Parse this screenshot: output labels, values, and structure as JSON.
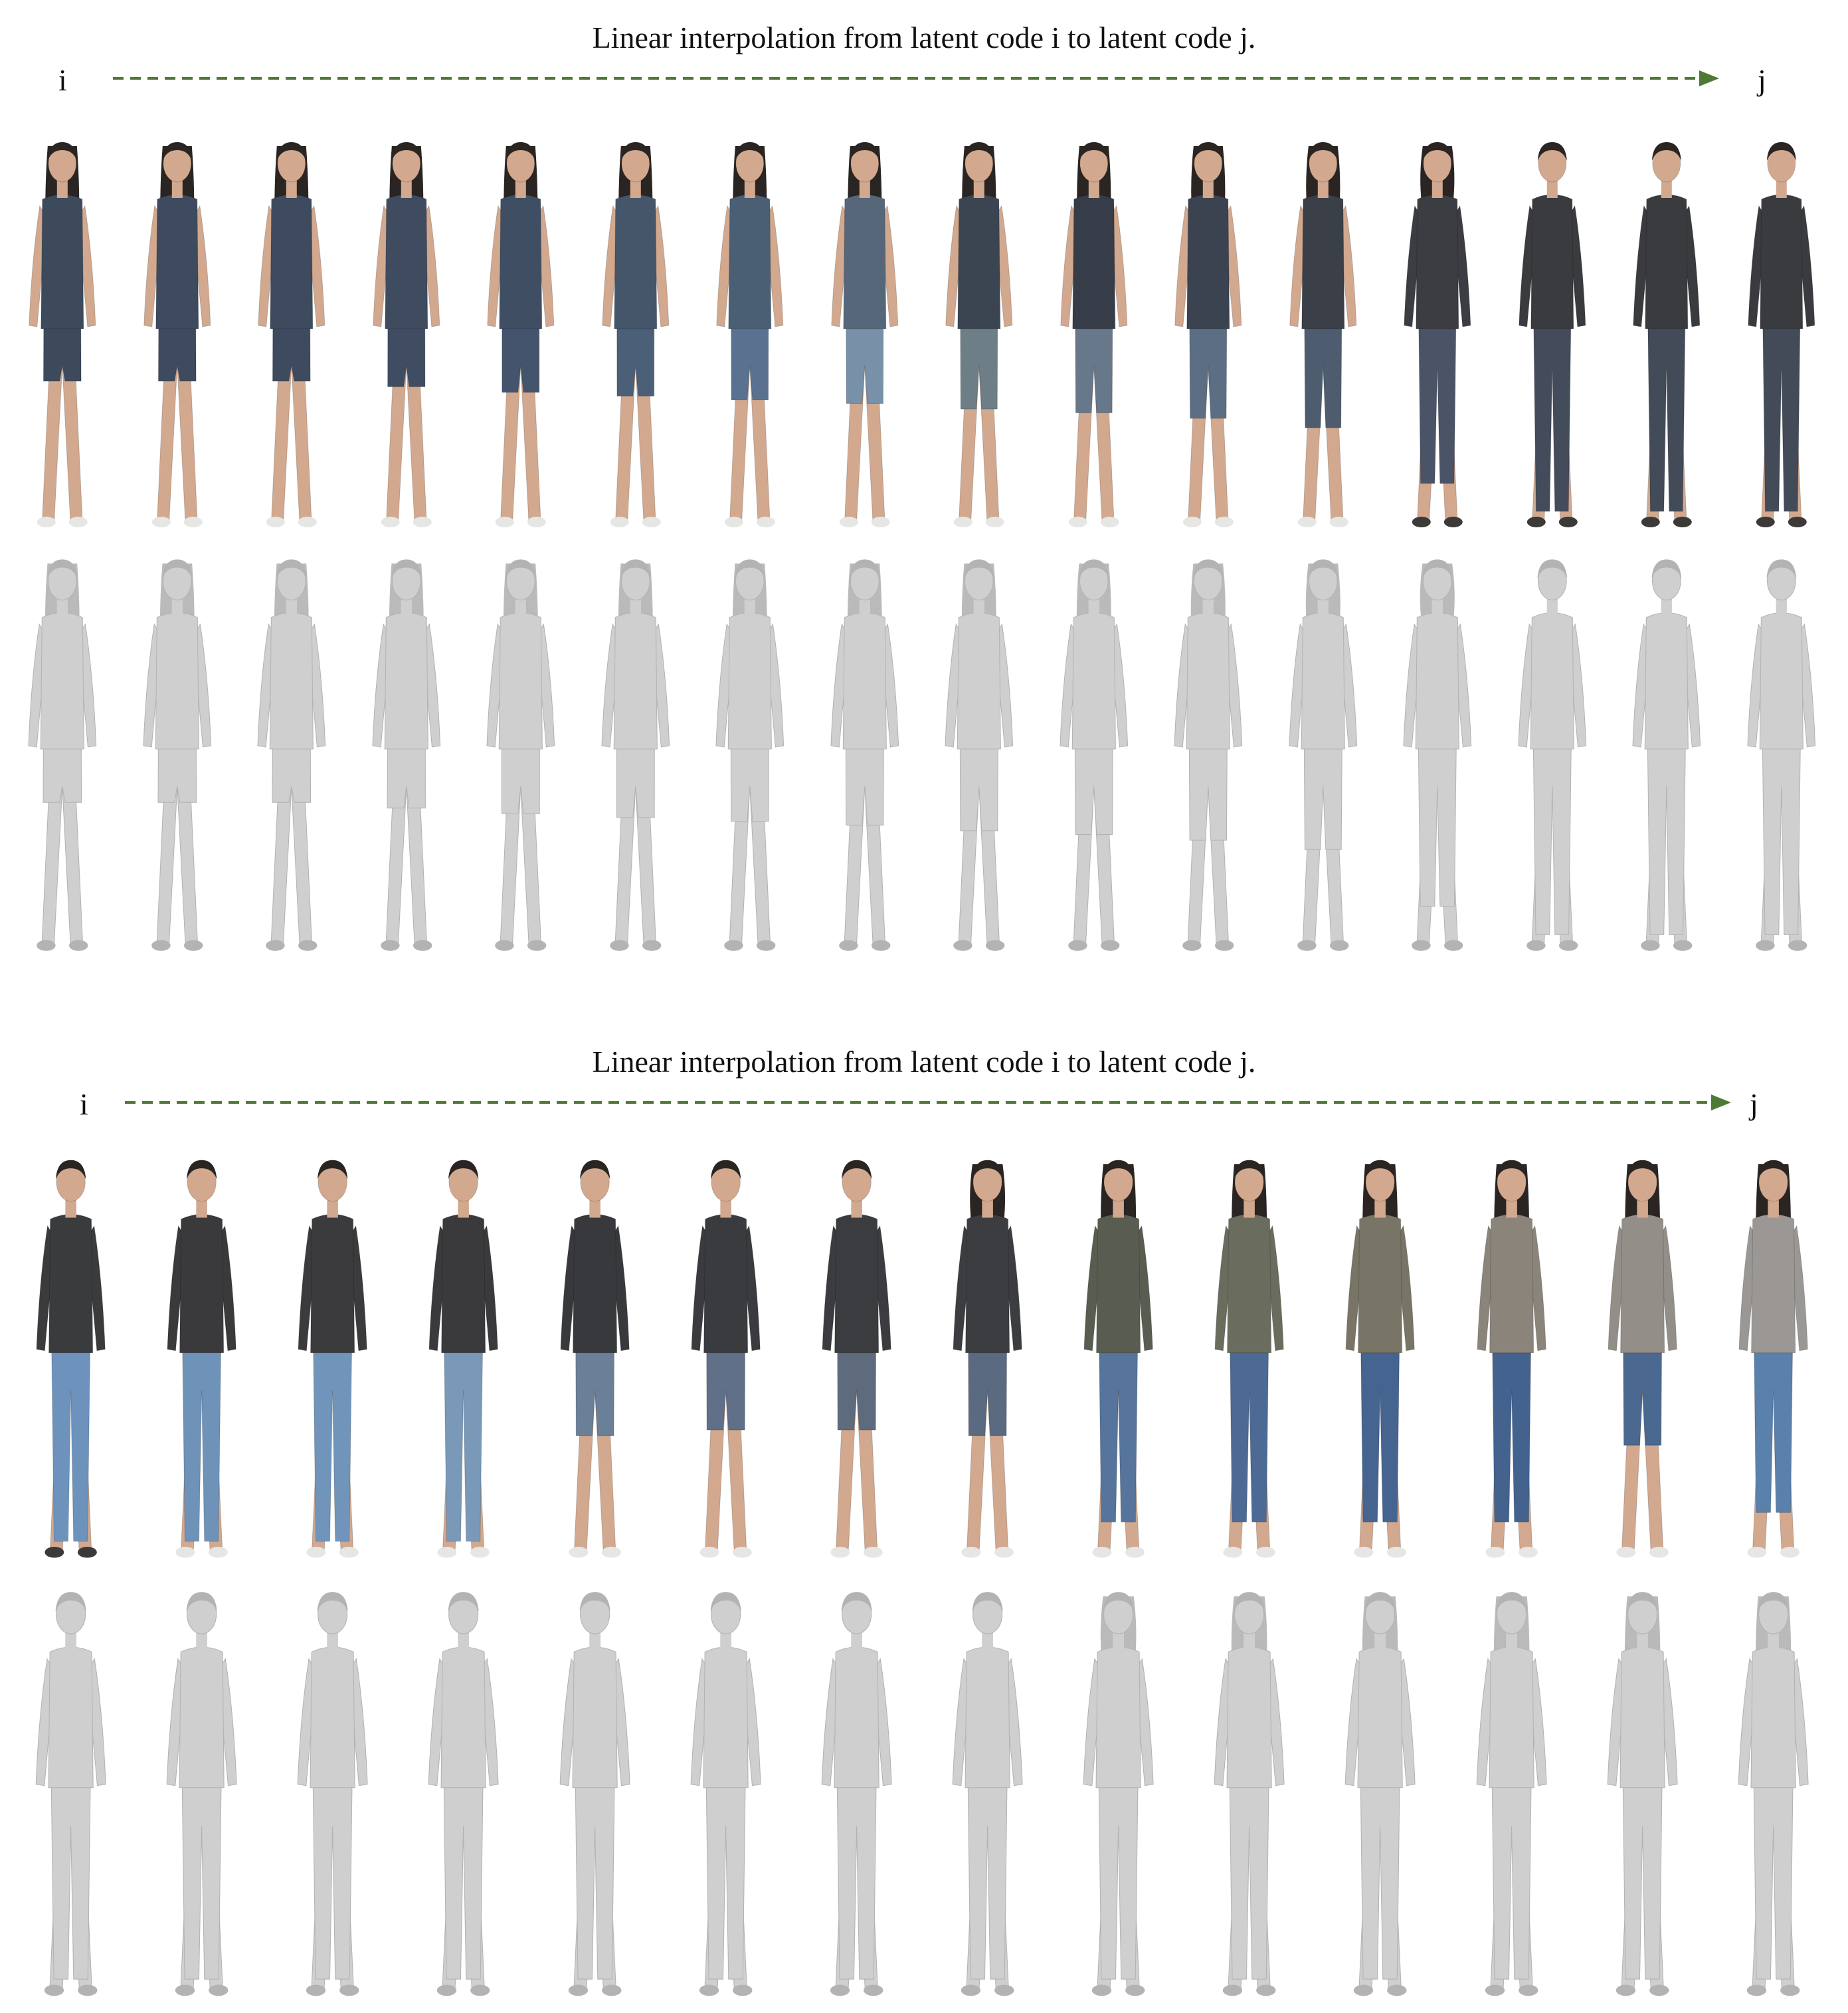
{
  "colors": {
    "arrow": "#4f7a35",
    "mesh_fill": "#cfcfcf",
    "mesh_shade": "#b3b3b3",
    "skin": "#d2a98f",
    "hair": "#2a2522",
    "shoe_dark": "#3c3a38",
    "shoe_light": "#e6e6e4"
  },
  "panels": [
    {
      "caption": "Linear interpolation from latent code i to latent code j.",
      "start_label": "i",
      "end_label": "j",
      "steps": 16,
      "rgb_row": {
        "tops": [
          "#3c4a5c",
          "#3e4b5e",
          "#3e4b5e",
          "#3f4c60",
          "#3f4e63",
          "#45566b",
          "#4a5e74",
          "#56677a",
          "#3b4552",
          "#363d48",
          "#3b4350",
          "#3a3f48",
          "#3b3d42",
          "#3a3b3f",
          "#3a3b3f",
          "#3a3b3f"
        ],
        "bottoms": [
          "#3c4a5c",
          "#3e4b5e",
          "#3e4b5e",
          "#3f4c62",
          "#44546c",
          "#4b5f78",
          "#5a7290",
          "#7890a8",
          "#6e7e86",
          "#67788a",
          "#5c6e84",
          "#4e5c70",
          "#4a5466",
          "#444b5a",
          "#434a58",
          "#434a58"
        ],
        "hair_long": [
          1,
          1,
          1,
          1,
          1,
          1,
          1,
          1,
          0.8,
          0.7,
          0.5,
          0.4,
          0.2,
          0,
          0,
          0
        ],
        "leg_cover": [
          0.3,
          0.3,
          0.3,
          0.33,
          0.36,
          0.38,
          0.4,
          0.42,
          0.45,
          0.47,
          0.5,
          0.55,
          0.85,
          1,
          1,
          1
        ],
        "shoes": [
          "light",
          "light",
          "light",
          "light",
          "light",
          "light",
          "light",
          "light",
          "light",
          "light",
          "light",
          "light",
          "dark",
          "dark",
          "dark",
          "dark"
        ]
      },
      "mesh_row": {
        "hair_long": [
          1,
          1,
          1,
          1,
          1,
          1,
          1,
          1,
          0.8,
          0.7,
          0.5,
          0.4,
          0.2,
          0,
          0,
          0
        ],
        "leg_cover": [
          0.3,
          0.3,
          0.3,
          0.33,
          0.36,
          0.38,
          0.4,
          0.42,
          0.45,
          0.47,
          0.5,
          0.55,
          0.85,
          1,
          1,
          1
        ]
      }
    },
    {
      "caption": "Linear interpolation from latent code i to latent code j.",
      "start_label": "i",
      "end_label": "j",
      "steps": 14,
      "rgb_row": {
        "tops": [
          "#3a3b3d",
          "#3a3a3c",
          "#3b3b3d",
          "#3a3a3c",
          "#38393c",
          "#3a3b3e",
          "#3b3c3f",
          "#3c3d40",
          "#595c50",
          "#6a6c5e",
          "#787466",
          "#8a847a",
          "#948e88",
          "#9a9794"
        ],
        "bottoms": [
          "#6d93bd",
          "#6e92b8",
          "#7194ba",
          "#7a98b8",
          "#6a7f98",
          "#5f7088",
          "#5d6b7d",
          "#5a6a80",
          "#56749c",
          "#4c6a94",
          "#466490",
          "#44628e",
          "#4a6890",
          "#5a80ac"
        ],
        "hair_long": [
          0,
          0,
          0,
          0,
          0,
          0,
          0,
          0.2,
          0.6,
          0.8,
          0.9,
          1,
          1,
          1
        ],
        "leg_cover": [
          1,
          1,
          1,
          1,
          0.45,
          0.42,
          0.42,
          0.45,
          0.9,
          0.9,
          0.9,
          0.9,
          0.5,
          0.85
        ],
        "shoes": [
          "dark",
          "light",
          "light",
          "light",
          "light",
          "light",
          "light",
          "light",
          "light",
          "light",
          "light",
          "light",
          "light",
          "light"
        ]
      },
      "mesh_row": {
        "hair_long": [
          0,
          0,
          0,
          0,
          0,
          0,
          0,
          0,
          0.3,
          0.5,
          0.7,
          0.8,
          0.9,
          1
        ],
        "leg_cover": [
          1,
          1,
          1,
          1,
          1,
          1,
          1,
          1,
          1,
          1,
          1,
          1,
          1,
          1
        ]
      }
    }
  ]
}
